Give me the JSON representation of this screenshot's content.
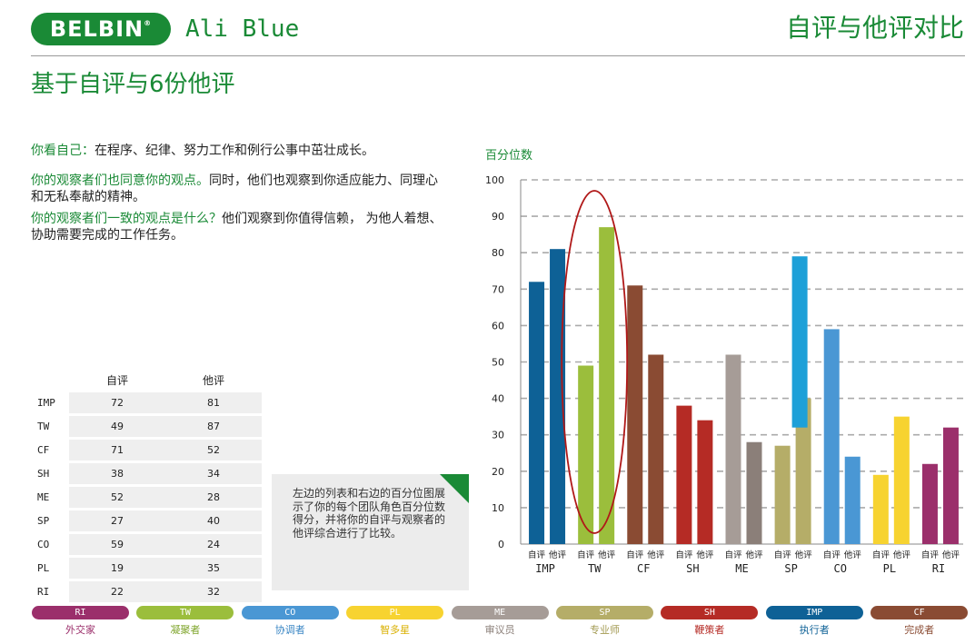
{
  "header": {
    "logo_text": "BELBIN",
    "logo_mark": "®",
    "person_name": "Ali Blue",
    "report_title": "自评与他评对比"
  },
  "subtitle": "基于自评与6份他评",
  "paragraphs": [
    {
      "lead": "你看自己：",
      "text": "在程序、纪律、努力工作和例行公事中茁壮成长。"
    },
    {
      "lead": "你的观察者们也同意你的观点。",
      "text": "同时，他们也观察到你适应能力、同理心和无私奉献的精神。"
    },
    {
      "lead": "你的观察者们一致的观点是什么？",
      "text": "他们观察到你值得信赖，  为他人着想、协助需要完成的工作任务。"
    }
  ],
  "table": {
    "headers": [
      "自评",
      "他评"
    ],
    "rows": [
      {
        "role": "IMP",
        "self": "72",
        "obs": "81"
      },
      {
        "role": "TW",
        "self": "49",
        "obs": "87"
      },
      {
        "role": "CF",
        "self": "71",
        "obs": "52"
      },
      {
        "role": "SH",
        "self": "38",
        "obs": "34"
      },
      {
        "role": "ME",
        "self": "52",
        "obs": "28"
      },
      {
        "role": "SP",
        "self": "27",
        "obs": "40"
      },
      {
        "role": "CO",
        "self": "59",
        "obs": "24"
      },
      {
        "role": "PL",
        "self": "19",
        "obs": "35"
      },
      {
        "role": "RI",
        "self": "22",
        "obs": "32"
      }
    ]
  },
  "note": "左边的列表和右边的百分位图展示了你的每个团队角色百分位数得分，并将你的自评与观察者的他评综合进行了比较。",
  "chart_data": {
    "type": "bar",
    "ylabel": "百分位数",
    "ylim": [
      0,
      100
    ],
    "yticks": [
      0,
      10,
      20,
      30,
      40,
      50,
      60,
      70,
      80,
      90,
      100
    ],
    "grid": "dashed horizontal",
    "categories": [
      "IMP",
      "TW",
      "CF",
      "SH",
      "ME",
      "SP",
      "CO",
      "PL",
      "RI"
    ],
    "sub_labels": [
      "自评",
      "他评"
    ],
    "series": [
      {
        "values": [
          72,
          49,
          71,
          38,
          52,
          27,
          59,
          19,
          22
        ]
      },
      {
        "values": [
          81,
          87,
          52,
          34,
          28,
          40,
          24,
          35,
          32
        ]
      }
    ],
    "colors": {
      "IMP": [
        "#0e6196",
        "#0e6196"
      ],
      "TW": [
        "#9bbe3c",
        "#9bbe3c"
      ],
      "CF": [
        "#8a4b33",
        "#8a4b33"
      ],
      "SH": [
        "#b52b25",
        "#b52b25"
      ],
      "ME": [
        "#a69c97",
        "#8b7f79"
      ],
      "SP": [
        "#b5ad68",
        "#b5ad68"
      ],
      "CO": [
        "#4a97d4",
        "#4a97d4"
      ],
      "PL": [
        "#f7d330",
        "#f7d330"
      ],
      "RI": [
        "#9b2f6b",
        "#9b2f6b"
      ]
    },
    "sp_overlay": {
      "from": 32,
      "to": 79,
      "color": "#1da0d8"
    },
    "highlight": {
      "category": "TW",
      "shape": "ellipse",
      "color": "#b01818"
    }
  },
  "legend": [
    {
      "code": "RI",
      "label": "外交家",
      "color": "#9b2f6b",
      "text_color": "#9b2f6b"
    },
    {
      "code": "TW",
      "label": "凝聚者",
      "color": "#9bbe3c",
      "text_color": "#7ea42a"
    },
    {
      "code": "CO",
      "label": "协调者",
      "color": "#4a97d4",
      "text_color": "#3a86c4"
    },
    {
      "code": "PL",
      "label": "智多星",
      "color": "#f7d330",
      "text_color": "#d9b000"
    },
    {
      "code": "ME",
      "label": "审议员",
      "color": "#a69c97",
      "text_color": "#8b7f79"
    },
    {
      "code": "SP",
      "label": "专业师",
      "color": "#b5ad68",
      "text_color": "#a39a52"
    },
    {
      "code": "SH",
      "label": "鞭策者",
      "color": "#b52b25",
      "text_color": "#b52b25"
    },
    {
      "code": "IMP",
      "label": "执行者",
      "color": "#0e6196",
      "text_color": "#0e6196"
    },
    {
      "code": "CF",
      "label": "完成者",
      "color": "#8a4b33",
      "text_color": "#8a4b33"
    }
  ]
}
